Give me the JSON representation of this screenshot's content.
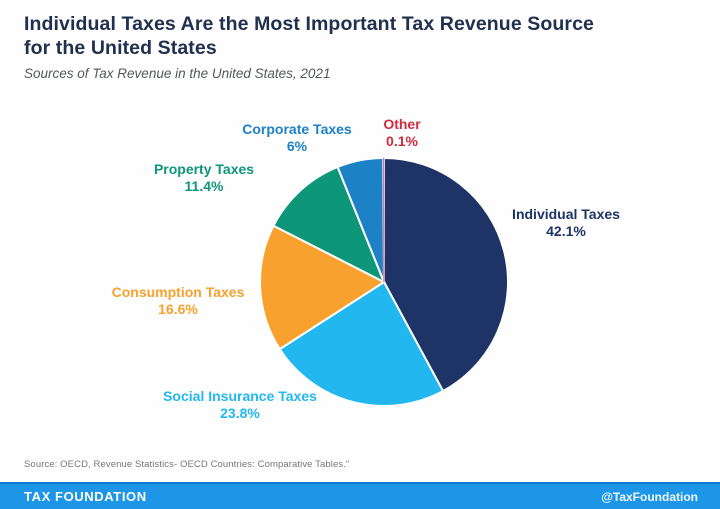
{
  "header": {
    "title_line1": "Individual Taxes Are the Most Important Tax Revenue Source",
    "title_line2": "for the United States",
    "subtitle": "Sources of Tax Revenue in the United States, 2021"
  },
  "chart_data": {
    "type": "pie",
    "title": "Individual Taxes Are the Most Important Tax Revenue Source for the United States",
    "subtitle": "Sources of Tax Revenue in the United States, 2021",
    "start_angle_deg": 0,
    "direction": "clockwise",
    "units": "percent",
    "slices": [
      {
        "label": "Individual Taxes",
        "value": 42.1,
        "display": "42.1%",
        "color": "#1e3366"
      },
      {
        "label": "Social Insurance Taxes",
        "value": 23.8,
        "display": "23.8%",
        "color": "#22b8ef"
      },
      {
        "label": "Consumption Taxes",
        "value": 16.6,
        "display": "16.6%",
        "color": "#f8a12e"
      },
      {
        "label": "Property Taxes",
        "value": 11.4,
        "display": "11.4%",
        "color": "#0e9679"
      },
      {
        "label": "Corporate Taxes",
        "value": 6.0,
        "display": "6%",
        "color": "#1d81c6"
      },
      {
        "label": "Other",
        "value": 0.1,
        "display": "0.1%",
        "color": "#c47fa4",
        "label_color": "#cf2b3f"
      }
    ],
    "legend_position": "labels-around-pie",
    "grid": false
  },
  "footer": {
    "source": "Source: OECD, Revenue Statistics- OECD Countries: Comparative Tables.\"",
    "brand": "TAX FOUNDATION",
    "handle": "@TaxFoundation",
    "bar_color": "#1e96e8"
  }
}
